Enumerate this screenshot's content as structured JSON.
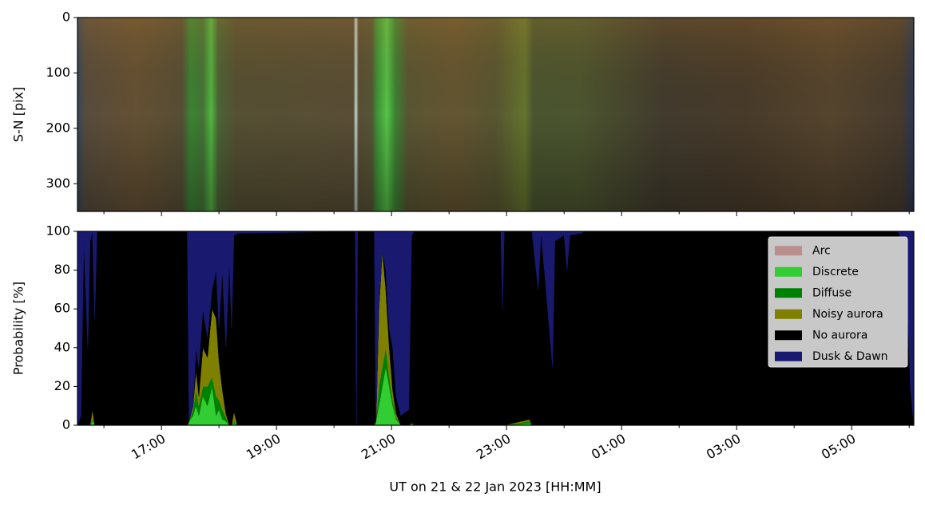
{
  "chart_data": [
    {
      "type": "image",
      "ylabel": "S-N [pix]",
      "ylim": [
        350,
        0
      ],
      "yticks": [
        0,
        100,
        200,
        300
      ]
    },
    {
      "type": "stacked-area",
      "ylabel": "Probability [%]",
      "xlabel": "UT on 21 & 22 Jan 2023 [HH:MM]",
      "xlim": [
        15.54,
        30.08
      ],
      "xticks": [
        {
          "value": 17,
          "label": "17:00"
        },
        {
          "value": 19,
          "label": "19:00"
        },
        {
          "value": 21,
          "label": "21:00"
        },
        {
          "value": 23,
          "label": "23:00"
        },
        {
          "value": 25,
          "label": "01:00"
        },
        {
          "value": 27,
          "label": "03:00"
        },
        {
          "value": 29,
          "label": "05:00"
        }
      ],
      "xminorticks": [
        16,
        18,
        20,
        22,
        24,
        26,
        28,
        30
      ],
      "ylim": [
        0,
        100
      ],
      "yticks": [
        0,
        20,
        40,
        60,
        80,
        100
      ],
      "legend": "upper right",
      "x": [
        15.54,
        15.6,
        15.65,
        15.72,
        15.76,
        15.8,
        15.84,
        15.88,
        17.45,
        17.48,
        17.55,
        17.6,
        17.65,
        17.72,
        17.8,
        17.88,
        17.95,
        18.0,
        18.06,
        18.12,
        18.18,
        18.22,
        18.26,
        18.32,
        20.37,
        20.39,
        20.41,
        20.7,
        20.73,
        20.78,
        20.84,
        20.9,
        20.96,
        21.02,
        21.08,
        21.16,
        21.3,
        21.35,
        21.4,
        22.9,
        22.93,
        22.96,
        23.4,
        23.44,
        23.55,
        23.6,
        23.8,
        23.84,
        24.0,
        24.05,
        24.1,
        24.3,
        24.35,
        29.8,
        29.88,
        29.95,
        30.02,
        30.08
      ],
      "series": [
        {
          "name": "Arc",
          "color": "#bc8f8f",
          "values": [
            0,
            0,
            0,
            0,
            0,
            0,
            0,
            0,
            0,
            0,
            0,
            0,
            0,
            0,
            0,
            0,
            0,
            0,
            0,
            0,
            0,
            0,
            0,
            0,
            0,
            0,
            0,
            0,
            0,
            0,
            0,
            0,
            0,
            0,
            0,
            0,
            0,
            0,
            0,
            0,
            0,
            0,
            0,
            0,
            0,
            0,
            0,
            0,
            0,
            0,
            0,
            0,
            0,
            0,
            0,
            0,
            0,
            0
          ]
        },
        {
          "name": "Discrete",
          "color": "#32cd32",
          "values": [
            0,
            0,
            0,
            0,
            0,
            2,
            0,
            0,
            0,
            2,
            5,
            10,
            5,
            15,
            10,
            20,
            5,
            8,
            3,
            2,
            0,
            0,
            1,
            0,
            0,
            0,
            0,
            0,
            2,
            10,
            20,
            30,
            20,
            10,
            3,
            0,
            0,
            1,
            0,
            0,
            0,
            0,
            1,
            0,
            0,
            0,
            0,
            0,
            0,
            0,
            0,
            0,
            0,
            0,
            0,
            0,
            0,
            0
          ]
        },
        {
          "name": "Diffuse",
          "color": "#008000",
          "values": [
            0,
            0,
            0,
            0,
            0,
            1,
            0,
            0,
            0,
            0,
            3,
            8,
            5,
            5,
            10,
            5,
            10,
            5,
            5,
            2,
            0,
            0,
            1,
            0,
            0,
            0,
            0,
            0,
            0,
            10,
            10,
            10,
            5,
            3,
            1,
            0,
            0,
            0,
            0,
            0,
            0,
            0,
            1,
            0,
            0,
            0,
            0,
            0,
            0,
            0,
            0,
            0,
            0,
            0,
            0,
            0,
            0,
            0
          ]
        },
        {
          "name": "Noisy aurora",
          "color": "#808000",
          "values": [
            0,
            0,
            0,
            0,
            0,
            5,
            0,
            0,
            0,
            0,
            2,
            10,
            5,
            20,
            15,
            35,
            40,
            20,
            10,
            2,
            0,
            0,
            5,
            0,
            0,
            0,
            0,
            0,
            0,
            40,
            60,
            30,
            15,
            5,
            2,
            0,
            0,
            0,
            0,
            0,
            0,
            0,
            1,
            0,
            0,
            0,
            0,
            0,
            0,
            0,
            0,
            0,
            0,
            0,
            0,
            0,
            0,
            0
          ]
        },
        {
          "name": "No aurora",
          "color": "#000000",
          "values": [
            0,
            5,
            95,
            40,
            95,
            92,
            55,
            100,
            100,
            0,
            0,
            12,
            15,
            20,
            10,
            10,
            25,
            17,
            62,
            34,
            85,
            50,
            91,
            99,
            100,
            0,
            100,
            100,
            0,
            0,
            0,
            10,
            10,
            22,
            9,
            5,
            8,
            97,
            100,
            100,
            60,
            100,
            97,
            100,
            70,
            100,
            30,
            95,
            98,
            80,
            98,
            99,
            100,
            100,
            95,
            80,
            20,
            0
          ]
        },
        {
          "name": "Dusk & Dawn",
          "color": "#191970",
          "values": [
            100,
            95,
            5,
            60,
            5,
            0,
            45,
            0,
            0,
            98,
            90,
            60,
            70,
            40,
            55,
            30,
            20,
            50,
            20,
            60,
            15,
            50,
            2,
            1,
            0,
            100,
            0,
            0,
            98,
            40,
            10,
            20,
            50,
            60,
            85,
            95,
            92,
            2,
            0,
            0,
            40,
            0,
            0,
            0,
            30,
            0,
            70,
            5,
            2,
            20,
            2,
            1,
            0,
            0,
            5,
            20,
            80,
            100
          ]
        }
      ]
    }
  ]
}
